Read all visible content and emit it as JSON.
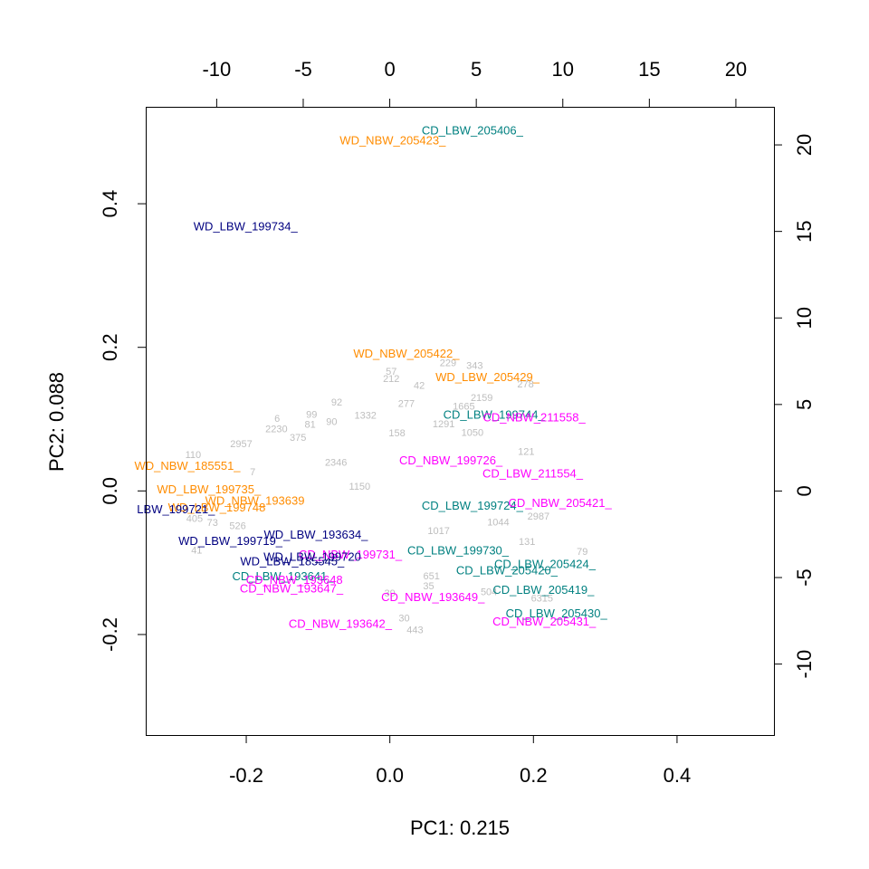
{
  "chart_data": {
    "type": "scatter",
    "title": "",
    "xlabel": "PC1: 0.215",
    "ylabel": "PC2: 0.088",
    "xlim": [
      -0.34,
      0.535
    ],
    "ylim": [
      -0.34,
      0.535
    ],
    "xticks": [
      -0.2,
      0.0,
      0.2,
      0.4
    ],
    "xtick_labels": [
      "-0.2",
      "0.0",
      "0.2",
      "0.4"
    ],
    "yticks": [
      -0.2,
      0.0,
      0.2,
      0.4
    ],
    "ytick_labels": [
      "-0.2",
      "0.0",
      "0.2",
      "0.4"
    ],
    "top_axis": {
      "lim": [
        -14.1,
        22.2
      ],
      "ticks": [
        -10,
        -5,
        0,
        5,
        10,
        15,
        20
      ],
      "tick_labels": [
        "-10",
        "-5",
        "0",
        "5",
        "10",
        "15",
        "20"
      ]
    },
    "right_axis": {
      "lim": [
        -14.1,
        22.2
      ],
      "ticks": [
        -10,
        -5,
        0,
        5,
        10,
        15,
        20
      ],
      "tick_labels": [
        "-10",
        "-5",
        "0",
        "5",
        "10",
        "15",
        "20"
      ]
    },
    "grid": false,
    "legend": "none",
    "colors": {
      "orange": "#ff8c00",
      "navy": "#000080",
      "teal": "#008080",
      "magenta": "#ff00ff",
      "gray": "#bebebe"
    },
    "samples": [
      {
        "label": "CD_LBW_205406_",
        "x": 0.115,
        "y": 0.503,
        "color": "teal"
      },
      {
        "label": "WD_NBW_205423_",
        "x": 0.004,
        "y": 0.489,
        "color": "orange"
      },
      {
        "label": "WD_LBW_199734_",
        "x": -0.201,
        "y": 0.369,
        "color": "navy"
      },
      {
        "label": "WD_NBW_205422_",
        "x": 0.023,
        "y": 0.192,
        "color": "orange"
      },
      {
        "label": "WD_LBW_205429_",
        "x": 0.136,
        "y": 0.159,
        "color": "orange"
      },
      {
        "label": "CD_LBW_199744_",
        "x": 0.145,
        "y": 0.107,
        "color": "teal"
      },
      {
        "label": "CD_NBW_211558_",
        "x": 0.201,
        "y": 0.103,
        "color": "magenta"
      },
      {
        "label": "WD_NBW_185551_",
        "x": -0.282,
        "y": 0.036,
        "color": "orange"
      },
      {
        "label": "CD_NBW_199726_",
        "x": 0.085,
        "y": 0.043,
        "color": "magenta"
      },
      {
        "label": "CD_LBW_211554_",
        "x": 0.199,
        "y": 0.025,
        "color": "magenta"
      },
      {
        "label": "WD_LBW_199735_",
        "x": -0.252,
        "y": 0.003,
        "color": "orange"
      },
      {
        "label": "WD_NBW_193639",
        "x": -0.188,
        "y": -0.013,
        "color": "orange"
      },
      {
        "label": "WD_LBW_199748",
        "x": -0.241,
        "y": -0.022,
        "color": "orange"
      },
      {
        "label": "LBW_199721_",
        "x": -0.298,
        "y": -0.025,
        "color": "navy"
      },
      {
        "label": "CD_LBW_199724_",
        "x": 0.115,
        "y": -0.02,
        "color": "teal"
      },
      {
        "label": "CD_NBW_205421_",
        "x": 0.237,
        "y": -0.016,
        "color": "magenta"
      },
      {
        "label": "WD_LBW_193634_",
        "x": -0.103,
        "y": -0.06,
        "color": "navy"
      },
      {
        "label": "WD_LBW_199719_",
        "x": -0.222,
        "y": -0.069,
        "color": "navy"
      },
      {
        "label": "CD_LBW_199730_",
        "x": 0.095,
        "y": -0.082,
        "color": "teal"
      },
      {
        "label": "WD_LBW_185545_",
        "x": -0.136,
        "y": -0.097,
        "color": "navy"
      },
      {
        "label": "CD_NBW_199731_",
        "x": -0.055,
        "y": -0.088,
        "color": "magenta"
      },
      {
        "label": "WD_LBW_199720",
        "x": -0.108,
        "y": -0.091,
        "color": "navy"
      },
      {
        "label": "CD_LBW_205424_",
        "x": 0.216,
        "y": -0.101,
        "color": "teal"
      },
      {
        "label": "CD_LBW_205420_",
        "x": 0.163,
        "y": -0.11,
        "color": "teal"
      },
      {
        "label": "CD_LBW_193641_",
        "x": -0.149,
        "y": -0.118,
        "color": "teal"
      },
      {
        "label": "CD_NBW_193648",
        "x": -0.133,
        "y": -0.123,
        "color": "magenta"
      },
      {
        "label": "CD_NBW_193647_",
        "x": -0.137,
        "y": -0.135,
        "color": "magenta"
      },
      {
        "label": "CD_LBW_205419_",
        "x": 0.214,
        "y": -0.137,
        "color": "teal"
      },
      {
        "label": "CD_NBW_193649_",
        "x": 0.06,
        "y": -0.147,
        "color": "magenta"
      },
      {
        "label": "CD_LBW_205430_",
        "x": 0.232,
        "y": -0.17,
        "color": "teal"
      },
      {
        "label": "CD_NBW_205431_",
        "x": 0.215,
        "y": -0.181,
        "color": "magenta"
      },
      {
        "label": "CD_NBW_193642_",
        "x": -0.069,
        "y": -0.184,
        "color": "magenta"
      }
    ],
    "variables": [
      {
        "label": "57",
        "x": 0.002,
        "y": 0.167
      },
      {
        "label": "212",
        "x": 0.002,
        "y": 0.157
      },
      {
        "label": "229",
        "x": 0.081,
        "y": 0.179
      },
      {
        "label": "343",
        "x": 0.118,
        "y": 0.175
      },
      {
        "label": "42",
        "x": 0.041,
        "y": 0.147
      },
      {
        "label": "278",
        "x": 0.189,
        "y": 0.149
      },
      {
        "label": "92",
        "x": -0.074,
        "y": 0.124
      },
      {
        "label": "277",
        "x": 0.023,
        "y": 0.122
      },
      {
        "label": "2159",
        "x": 0.128,
        "y": 0.13
      },
      {
        "label": "99",
        "x": -0.109,
        "y": 0.107
      },
      {
        "label": "6",
        "x": -0.157,
        "y": 0.101
      },
      {
        "label": "81",
        "x": -0.111,
        "y": 0.093
      },
      {
        "label": "90",
        "x": -0.081,
        "y": 0.097
      },
      {
        "label": "2230",
        "x": -0.158,
        "y": 0.087
      },
      {
        "label": "1332",
        "x": -0.034,
        "y": 0.106
      },
      {
        "label": "1665",
        "x": 0.103,
        "y": 0.118
      },
      {
        "label": "1050",
        "x": 0.115,
        "y": 0.082
      },
      {
        "label": "2957",
        "x": -0.207,
        "y": 0.066
      },
      {
        "label": "121",
        "x": 0.19,
        "y": 0.055
      },
      {
        "label": "110",
        "x": -0.274,
        "y": 0.051
      },
      {
        "label": "375",
        "x": -0.128,
        "y": 0.075
      },
      {
        "label": "7",
        "x": -0.191,
        "y": 0.027
      },
      {
        "label": "2987",
        "x": 0.207,
        "y": -0.035
      },
      {
        "label": "131",
        "x": 0.191,
        "y": -0.07
      },
      {
        "label": "79",
        "x": 0.268,
        "y": -0.084
      },
      {
        "label": "504",
        "x": 0.138,
        "y": -0.14
      },
      {
        "label": "6315",
        "x": 0.212,
        "y": -0.149
      },
      {
        "label": "30",
        "x": 0.02,
        "y": -0.177
      },
      {
        "label": "443",
        "x": 0.035,
        "y": -0.193
      },
      {
        "label": "39",
        "x": 0.0,
        "y": -0.142
      },
      {
        "label": "35",
        "x": 0.054,
        "y": -0.132
      },
      {
        "label": "651",
        "x": 0.058,
        "y": -0.118
      },
      {
        "label": "73",
        "x": -0.247,
        "y": -0.044
      },
      {
        "label": "526",
        "x": -0.212,
        "y": -0.048
      },
      {
        "label": "41",
        "x": -0.269,
        "y": -0.082
      },
      {
        "label": "405",
        "x": -0.272,
        "y": -0.038
      },
      {
        "label": "2346",
        "x": -0.075,
        "y": 0.04
      },
      {
        "label": "1150",
        "x": -0.042,
        "y": 0.007
      },
      {
        "label": "1017",
        "x": 0.068,
        "y": -0.055
      },
      {
        "label": "1044",
        "x": 0.151,
        "y": -0.043
      },
      {
        "label": "158",
        "x": 0.01,
        "y": 0.081
      },
      {
        "label": "1291",
        "x": 0.075,
        "y": 0.094
      }
    ]
  }
}
